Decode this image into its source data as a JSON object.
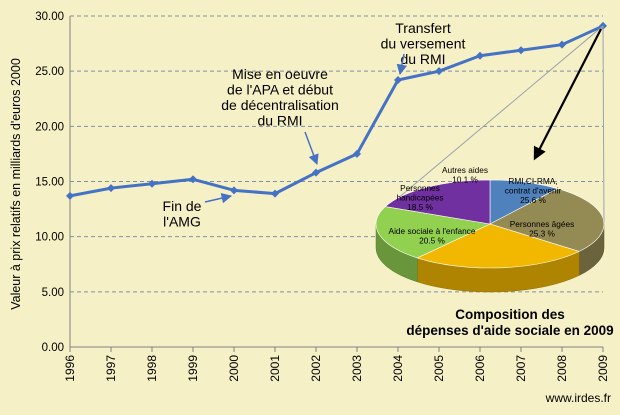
{
  "chart_data": {
    "type": "line",
    "ylabel": "Valeur à prix relatifs en milliards d'euros 2000",
    "ylim": [
      0,
      30
    ],
    "yticks": [
      "0.00",
      "5.00",
      "10.00",
      "15.00",
      "20.00",
      "25.00",
      "30.00"
    ],
    "ytick_values": [
      0,
      5,
      10,
      15,
      20,
      25,
      30
    ],
    "x": [
      "1996",
      "1997",
      "1998",
      "1999",
      "2000",
      "2001",
      "2002",
      "2003",
      "2004",
      "2005",
      "2006",
      "2007",
      "2008",
      "2009"
    ],
    "series": [
      {
        "values": [
          13.7,
          14.4,
          14.8,
          15.2,
          14.2,
          13.9,
          15.8,
          17.5,
          24.2,
          25.0,
          26.4,
          26.9,
          27.4,
          29.1
        ]
      }
    ],
    "grid": "horizontal dashed",
    "line_color": "#4472C4",
    "annotations": [
      {
        "lines": [
          "Fin de",
          "l'AMG"
        ]
      },
      {
        "lines": [
          "Mise en oeuvre",
          "de l'APA  et début",
          "de décentralisation",
          "du RMI"
        ]
      },
      {
        "lines": [
          "Transfert",
          "du versement",
          "du RMI"
        ]
      }
    ],
    "inset_pie": {
      "type": "pie",
      "title": [
        "Composition des",
        "dépenses d'aide sociale en 2009"
      ],
      "slices": [
        {
          "label": "Autres aides",
          "value_label": "10.1 %",
          "value": 10.1,
          "color": "#4F81BD"
        },
        {
          "label": "RMI,CI-RMA, contrat d'avenir",
          "label_lines": [
            "RMI,CI-RMA,",
            "contrat d'avenir"
          ],
          "value_label": "25.6 %",
          "value": 25.6,
          "color": "#948A54"
        },
        {
          "label": "Personnes âgées",
          "value_label": "25.3 %",
          "value": 25.3,
          "color": "#F2B800"
        },
        {
          "label": "Aide sociale à l'enfance",
          "value_label": "20.5 %",
          "value": 20.5,
          "color": "#92D050"
        },
        {
          "label": "Personnes handicapées",
          "label_lines": [
            "Personnes",
            "handicapées"
          ],
          "value_label": "18.5 %",
          "value": 18.5,
          "color": "#7030A0"
        }
      ]
    }
  },
  "footer": {
    "source": "www.irdes.fr"
  }
}
